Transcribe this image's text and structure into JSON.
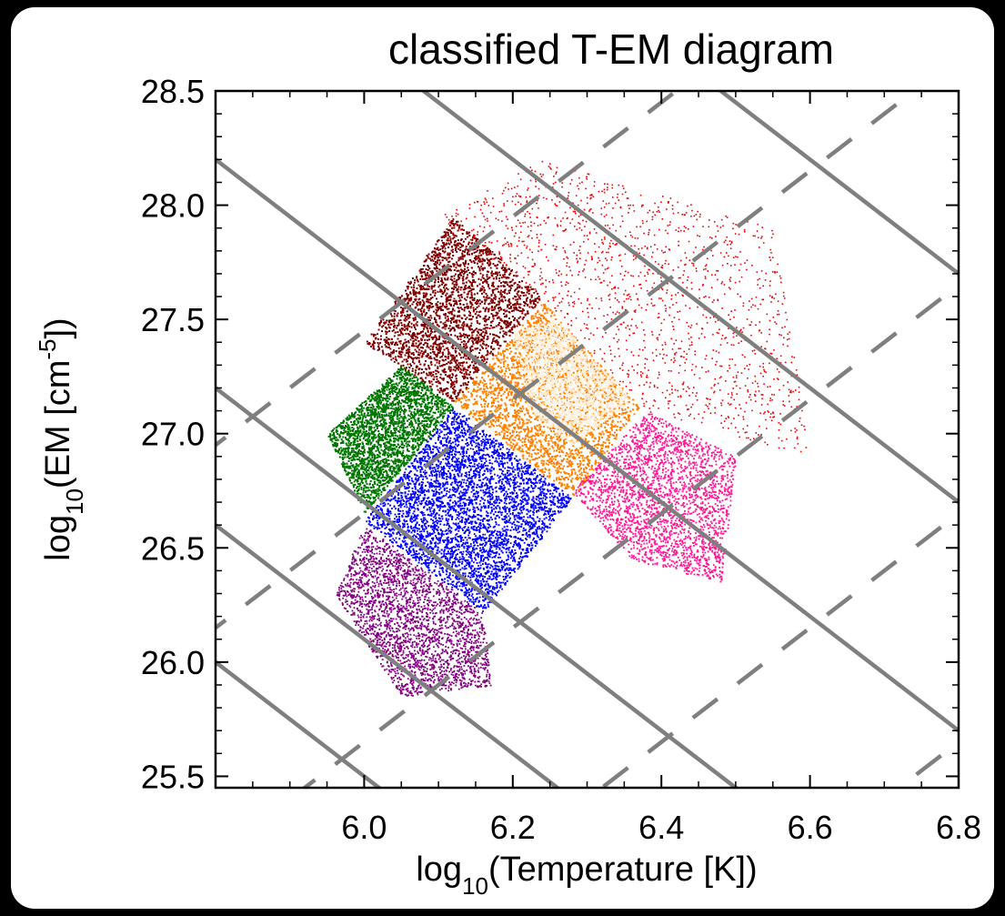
{
  "chart_data": {
    "type": "scatter",
    "title": "classified T-EM diagram",
    "xlabel": {
      "prefix": "log",
      "sub": "10",
      "rest": "(Temperature [K])"
    },
    "ylabel": {
      "prefix": "log",
      "sub": "10",
      "mid": "(EM [cm",
      "sup": "-5",
      "end": "])"
    },
    "xlim": [
      5.8,
      6.8
    ],
    "ylim": [
      25.45,
      28.5
    ],
    "xticks": [
      6.0,
      6.2,
      6.4,
      6.6,
      6.8
    ],
    "xticklabels": [
      "6.0",
      "6.2",
      "6.4",
      "6.6",
      "6.8"
    ],
    "yticks": [
      25.5,
      26.0,
      26.5,
      27.0,
      27.5,
      28.0,
      28.5
    ],
    "yticklabels": [
      "25.5",
      "26.0",
      "26.5",
      "27.0",
      "27.5",
      "28.0",
      "28.5"
    ],
    "grid": false,
    "clusters": [
      {
        "color": "#0000ff",
        "region": [
          [
            6.12,
            27.12
          ],
          [
            6.28,
            26.72
          ],
          [
            6.16,
            26.22
          ],
          [
            6.0,
            26.62
          ]
        ],
        "density": "dense"
      },
      {
        "color": "#ff8000",
        "region": [
          [
            6.12,
            27.14
          ],
          [
            6.24,
            27.58
          ],
          [
            6.37,
            27.12
          ],
          [
            6.28,
            26.72
          ]
        ],
        "density": "dense"
      },
      {
        "color": "#fff0dd",
        "region": [
          [
            6.2,
            27.45
          ],
          [
            6.26,
            27.5
          ],
          [
            6.36,
            27.15
          ],
          [
            6.28,
            26.95
          ],
          [
            6.22,
            27.1
          ]
        ],
        "density": "medium"
      },
      {
        "color": "#800000",
        "region": [
          [
            6.12,
            27.14
          ],
          [
            6.24,
            27.6
          ],
          [
            6.12,
            27.95
          ],
          [
            6.0,
            27.4
          ]
        ],
        "density": "dense"
      },
      {
        "color": "#007700",
        "region": [
          [
            6.0,
            26.65
          ],
          [
            6.12,
            27.12
          ],
          [
            6.05,
            27.3
          ],
          [
            5.95,
            27.0
          ]
        ],
        "density": "dense"
      },
      {
        "color": "#800080",
        "region": [
          [
            6.0,
            26.6
          ],
          [
            6.16,
            26.22
          ],
          [
            6.17,
            25.9
          ],
          [
            6.05,
            25.85
          ],
          [
            5.96,
            26.3
          ]
        ],
        "density": "medium"
      },
      {
        "color": "#ff1493",
        "region": [
          [
            6.28,
            26.75
          ],
          [
            6.38,
            27.1
          ],
          [
            6.5,
            26.9
          ],
          [
            6.48,
            26.35
          ],
          [
            6.36,
            26.45
          ]
        ],
        "density": "medium"
      },
      {
        "color": "#ee0000",
        "region": [
          [
            6.1,
            27.95
          ],
          [
            6.24,
            28.2
          ],
          [
            6.55,
            27.9
          ],
          [
            6.6,
            26.9
          ],
          [
            6.38,
            27.1
          ],
          [
            6.24,
            27.6
          ]
        ],
        "density": "sparse"
      }
    ],
    "overlay_lines": {
      "color": "#7f7f7f",
      "solid_slope": -2.5,
      "solid_intercepts_at_x6": [
        25.5,
        26.1,
        26.7,
        27.7,
        28.7,
        29.7
      ],
      "dashed_slope": 2.5,
      "dashed_intercepts_at_x6": [
        27.45,
        26.65,
        25.65,
        24.65,
        23.65
      ]
    }
  }
}
